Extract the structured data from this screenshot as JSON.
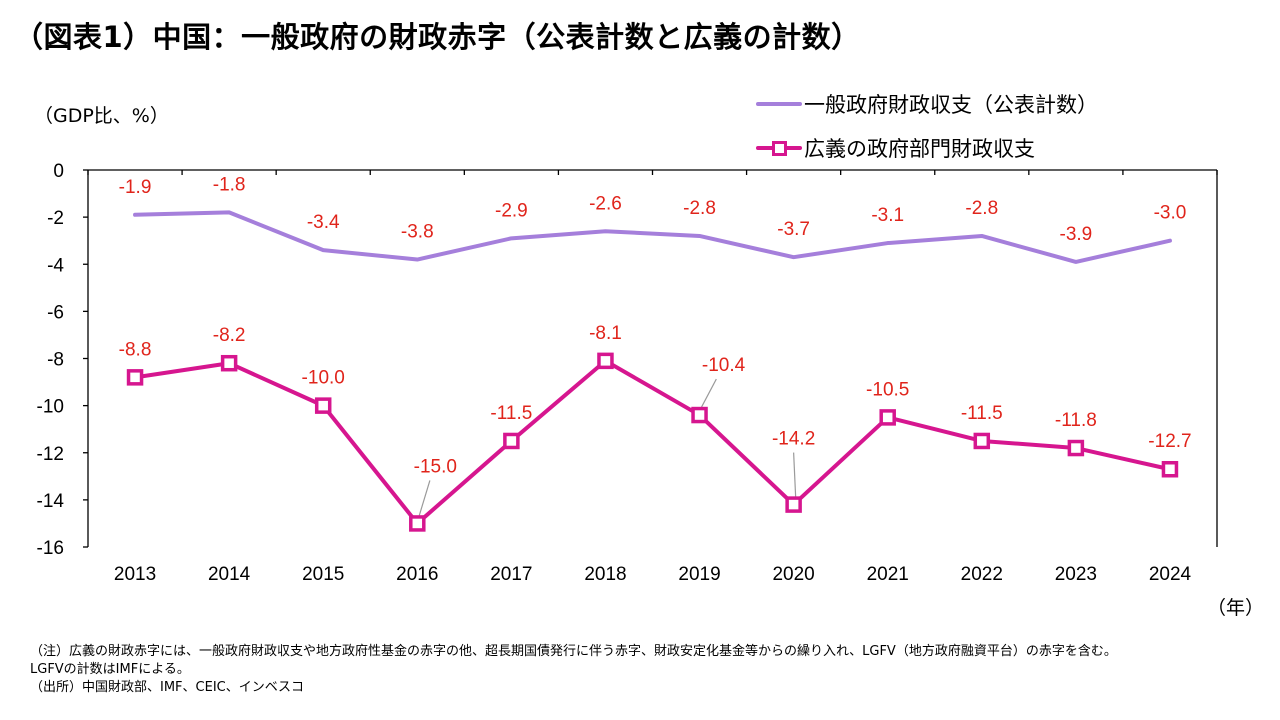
{
  "title": "（図表1）中国：一般政府の財政赤字（公表計数と広義の計数）",
  "notes": [
    "（注）広義の財政赤字には、一般政府財政収支や地方政府性基金の赤字の他、超長期国債発行に伴う赤字、財政安定化基金等からの繰り入れ、LGFV（地方政府融資平台）の赤字を含む。",
    "LGFVの計数はIMFによる。",
    "（出所）中国財政部、IMF、CEIC、インベスコ"
  ],
  "chart_data": {
    "type": "line",
    "title": "（図表1）中国：一般政府の財政赤字（公表計数と広義の計数）",
    "ylabel": "（GDP比、%）",
    "xlabel": "（年）",
    "ylim": [
      -16,
      0
    ],
    "yticks": [
      0,
      -2,
      -4,
      -6,
      -8,
      -10,
      -12,
      -14,
      -16
    ],
    "ytick_labels": [
      "0",
      "-2",
      "-4",
      "-6",
      "-8",
      "-10",
      "-12",
      "-14",
      "-16"
    ],
    "categories": [
      "2013",
      "2014",
      "2015",
      "2016",
      "2017",
      "2018",
      "2019",
      "2020",
      "2021",
      "2022",
      "2023",
      "2024"
    ],
    "legend_position": "top-right",
    "series": [
      {
        "name": "一般政府財政収支（公表計数）",
        "color": "#a57fdb",
        "marker": "none",
        "values": [
          -1.9,
          -1.8,
          -3.4,
          -3.8,
          -2.9,
          -2.6,
          -2.8,
          -3.7,
          -3.1,
          -2.8,
          -3.9,
          -3.0
        ],
        "labels": [
          "-1.9",
          "-1.8",
          "-3.4",
          "-3.8",
          "-2.9",
          "-2.6",
          "-2.8",
          "-3.7",
          "-3.1",
          "-2.8",
          "-3.9",
          "-3.0"
        ]
      },
      {
        "name": "広義の政府部門財政収支",
        "color": "#d6168f",
        "marker": "square",
        "values": [
          -8.8,
          -8.2,
          -10.0,
          -15.0,
          -11.5,
          -8.1,
          -10.4,
          -14.2,
          -10.5,
          -11.5,
          -11.8,
          -12.7
        ],
        "labels": [
          "-8.8",
          "-8.2",
          "-10.0",
          "-15.0",
          "-11.5",
          "-8.1",
          "-10.4",
          "-14.2",
          "-10.5",
          "-11.5",
          "-11.8",
          "-12.7"
        ]
      }
    ],
    "label_color": "#e0241b"
  }
}
